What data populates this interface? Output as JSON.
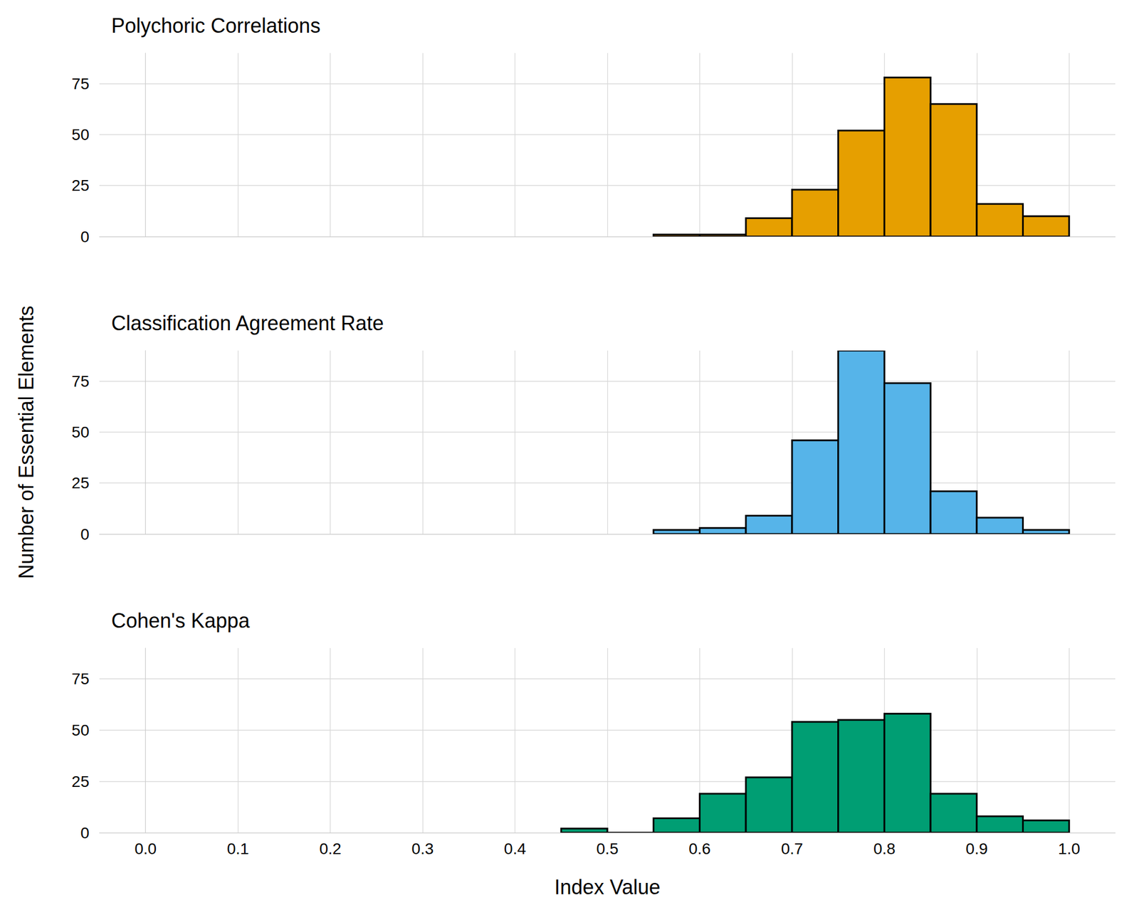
{
  "chart_data": [
    {
      "type": "histogram",
      "title": "Polychoric Correlations",
      "bins": [
        0.55,
        0.6,
        0.65,
        0.7,
        0.75,
        0.8,
        0.85,
        0.9,
        0.95,
        1.0
      ],
      "counts": [
        1,
        1,
        9,
        23,
        52,
        78,
        65,
        16,
        10
      ],
      "color": "#E69F00",
      "xlim": [
        -0.05,
        1.05
      ],
      "xticks": [
        {
          "value": 0,
          "label": "0.0"
        },
        0.1,
        0.2,
        0.3,
        0.4,
        0.5,
        0.6,
        0.7,
        0.8,
        0.9,
        {
          "value": 1,
          "label": "1.0"
        }
      ],
      "ylim": [
        0,
        90
      ],
      "yticks": [
        0,
        25,
        50,
        75
      ],
      "grid": true,
      "tick_labels": "y"
    },
    {
      "type": "histogram",
      "title": "Classification Agreement Rate",
      "ylabel": "Number of Essential Elements",
      "bins": [
        0.55,
        0.6,
        0.65,
        0.7,
        0.75,
        0.8,
        0.85,
        0.9,
        0.95,
        1.0
      ],
      "counts": [
        2,
        3,
        9,
        46,
        90,
        74,
        21,
        8,
        2
      ],
      "color": "#56B4E9",
      "xlim": [
        -0.05,
        1.05
      ],
      "xticks": [
        {
          "value": 0,
          "label": "0.0"
        },
        0.1,
        0.2,
        0.3,
        0.4,
        0.5,
        0.6,
        0.7,
        0.8,
        0.9,
        {
          "value": 1,
          "label": "1.0"
        }
      ],
      "ylim": [
        0,
        90
      ],
      "yticks": [
        0,
        25,
        50,
        75
      ],
      "grid": true,
      "tick_labels": "y"
    },
    {
      "type": "histogram",
      "title": "Cohen's Kappa",
      "xlabel": "Index Value",
      "bins": [
        0.45,
        0.5,
        0.55,
        0.6,
        0.65,
        0.7,
        0.75,
        0.8,
        0.85,
        0.9,
        0.95,
        1.0
      ],
      "counts": [
        2,
        0,
        7,
        19,
        27,
        54,
        55,
        58,
        19,
        8,
        6
      ],
      "color": "#009E73",
      "xlim": [
        -0.05,
        1.05
      ],
      "xticks": [
        {
          "value": 0,
          "label": "0.0"
        },
        0.1,
        0.2,
        0.3,
        0.4,
        0.5,
        0.6,
        0.7,
        0.8,
        0.9,
        {
          "value": 1,
          "label": "1.0"
        }
      ],
      "ylim": [
        0,
        90
      ],
      "yticks": [
        0,
        25,
        50,
        75
      ],
      "grid": true
    }
  ]
}
